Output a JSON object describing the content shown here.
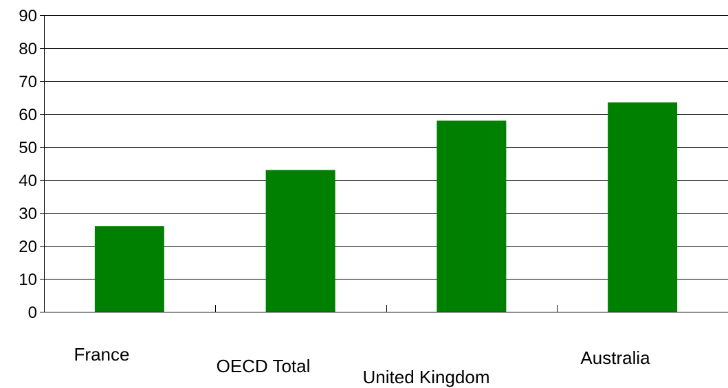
{
  "chart_data": {
    "type": "bar",
    "categories": [
      "France",
      "OECD Total",
      "United Kingdom",
      "Australia"
    ],
    "values": [
      26,
      43,
      58,
      63.5
    ],
    "ylim": [
      0,
      90
    ],
    "yticks": [
      0,
      10,
      20,
      30,
      40,
      50,
      60,
      70,
      80,
      90
    ],
    "yticklabels": [
      "0",
      "10",
      "20",
      "30",
      "40",
      "50",
      "60",
      "70",
      "80",
      "90"
    ],
    "grid": true,
    "legend": "none",
    "colors": {
      "bar": "#008000",
      "gridline": "#000000",
      "axis": "#000000"
    }
  }
}
